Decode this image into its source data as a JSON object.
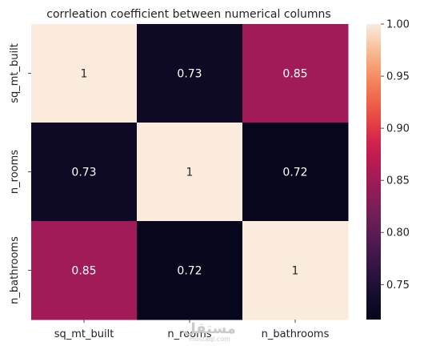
{
  "chart_data": {
    "type": "heatmap",
    "title": "corrleation coefficient between numerical columns",
    "x_categories": [
      "sq_mt_built",
      "n_rooms",
      "n_bathrooms"
    ],
    "y_categories": [
      "sq_mt_built",
      "n_rooms",
      "n_bathrooms"
    ],
    "values": [
      [
        1,
        0.73,
        0.85
      ],
      [
        0.73,
        1,
        0.72
      ],
      [
        0.85,
        0.72,
        1
      ]
    ],
    "cell_labels": [
      [
        "1",
        "0.73",
        "0.85"
      ],
      [
        "0.73",
        "1",
        "0.72"
      ],
      [
        "0.85",
        "0.72",
        "1"
      ]
    ],
    "colorbar": {
      "min": 0.7164,
      "max": 1.0,
      "ticks": [
        0.75,
        0.8,
        0.85,
        0.9,
        0.95,
        1.0
      ],
      "tick_labels": [
        "0.75",
        "0.80",
        "0.85",
        "0.90",
        "0.95",
        "1.00"
      ],
      "colormap": "rocket"
    },
    "grid": false,
    "legend": "colorbar-right"
  },
  "watermark": {
    "text": "مستقل",
    "sub": "mostaql.com"
  }
}
